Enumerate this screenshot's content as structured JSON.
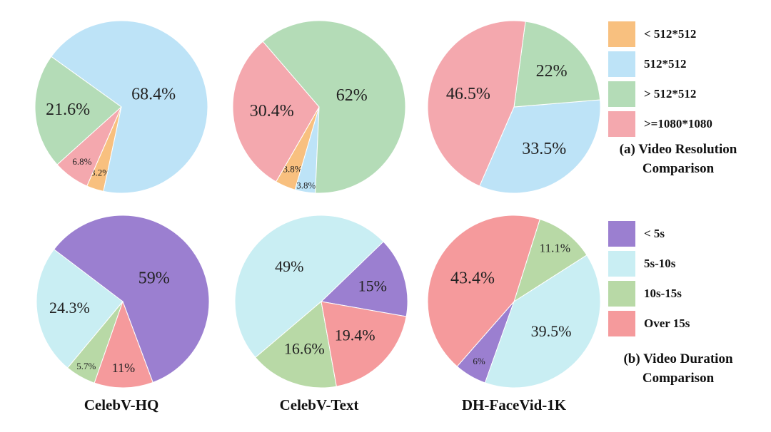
{
  "chart_data": [
    {
      "type": "pie",
      "title": "",
      "group": "resolution",
      "dataset": "CelebV-HQ",
      "slices": [
        {
          "label": "< 512*512",
          "value": 3.2,
          "display": "3.2%"
        },
        {
          "label": "512*512",
          "value": 68.4,
          "display": "68.4%"
        },
        {
          "label": "> 512*512",
          "value": 21.6,
          "display": "21.6%"
        },
        {
          "label": ">=1080*1080",
          "value": 6.8,
          "display": "6.8%"
        }
      ]
    },
    {
      "type": "pie",
      "title": "",
      "group": "resolution",
      "dataset": "CelebV-Text",
      "slices": [
        {
          "label": "< 512*512",
          "value": 3.8,
          "display": "3.8%"
        },
        {
          "label": "512*512",
          "value": 3.8,
          "display": "3.8%"
        },
        {
          "label": "> 512*512",
          "value": 62,
          "display": "62%"
        },
        {
          "label": ">=1080*1080",
          "value": 30.4,
          "display": "30.4%"
        }
      ]
    },
    {
      "type": "pie",
      "title": "",
      "group": "resolution",
      "dataset": "DH-FaceVid-1K",
      "slices": [
        {
          "label": "< 512*512",
          "value": 0,
          "display": ""
        },
        {
          "label": "512*512",
          "value": 33.5,
          "display": "33.5%"
        },
        {
          "label": "> 512*512",
          "value": 22,
          "display": "22%"
        },
        {
          "label": ">=1080*1080",
          "value": 46.5,
          "display": "46.5%"
        }
      ]
    },
    {
      "type": "pie",
      "title": "",
      "group": "duration",
      "dataset": "CelebV-HQ",
      "slices": [
        {
          "label": "< 5s",
          "value": 59,
          "display": "59%"
        },
        {
          "label": "5s-10s",
          "value": 24.3,
          "display": "24.3%"
        },
        {
          "label": "10s-15s",
          "value": 5.7,
          "display": "5.7%"
        },
        {
          "label": "Over 15s",
          "value": 11,
          "display": "11%"
        }
      ]
    },
    {
      "type": "pie",
      "title": "",
      "group": "duration",
      "dataset": "CelebV-Text",
      "slices": [
        {
          "label": "< 5s",
          "value": 15,
          "display": "15%"
        },
        {
          "label": "5s-10s",
          "value": 49,
          "display": "49%"
        },
        {
          "label": "10s-15s",
          "value": 16.6,
          "display": "16.6%"
        },
        {
          "label": "Over 15s",
          "value": 19.4,
          "display": "19.4%"
        }
      ]
    },
    {
      "type": "pie",
      "title": "",
      "group": "duration",
      "dataset": "DH-FaceVid-1K",
      "slices": [
        {
          "label": "< 5s",
          "value": 6,
          "display": "6%"
        },
        {
          "label": "5s-10s",
          "value": 39.5,
          "display": "39.5%"
        },
        {
          "label": "10s-15s",
          "value": 11.1,
          "display": "11.1%"
        },
        {
          "label": "Over 15s",
          "value": 43.4,
          "display": "43.4%"
        }
      ]
    }
  ],
  "legends": {
    "resolution": {
      "items": [
        {
          "label": "< 512*512",
          "color": "#f8c07f"
        },
        {
          "label": "512*512",
          "color": "#bde3f7"
        },
        {
          "label": "> 512*512",
          "color": "#b4dcb7"
        },
        {
          "label": ">=1080*1080",
          "color": "#f4a8ae"
        }
      ],
      "title_line1": "(a) Video Resolution",
      "title_line2": "Comparison"
    },
    "duration": {
      "items": [
        {
          "label": "< 5s",
          "color": "#9b7fd0"
        },
        {
          "label": "5s-10s",
          "color": "#c9eef3"
        },
        {
          "label": "10s-15s",
          "color": "#b8d9a6"
        },
        {
          "label": "Over 15s",
          "color": "#f59a9c"
        }
      ],
      "title_line1": "(b) Video Duration",
      "title_line2": "Comparison"
    }
  },
  "column_labels": [
    "CelebV-HQ",
    "CelebV-Text",
    "DH-FaceVid-1K"
  ]
}
